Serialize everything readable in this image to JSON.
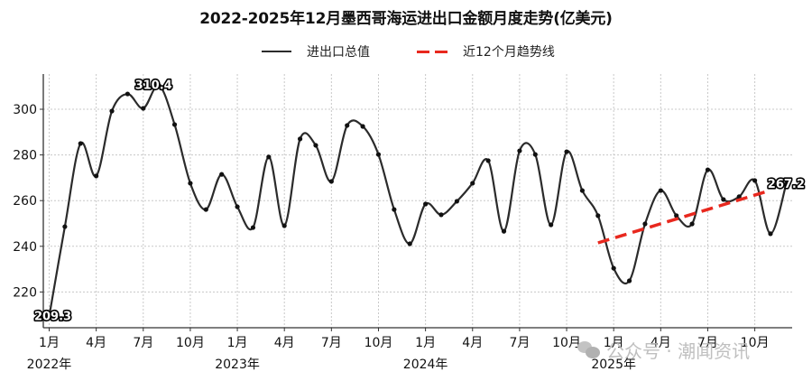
{
  "title": "2022-2025年12月墨西哥海运进出口金额月度走势(亿美元)",
  "legend": [
    {
      "label": "进出口总值",
      "style": "solid",
      "color": "#2b2b2b"
    },
    {
      "label": "近12个月趋势线",
      "style": "dashed",
      "color": "#e8281e"
    }
  ],
  "watermark": "公众号 · 潮闻资讯",
  "chart_data": {
    "type": "line",
    "title": "2022-2025年12月墨西哥海运进出口金额月度走势(亿美元)",
    "xlabel": "",
    "ylabel": "",
    "ylim": [
      204,
      316
    ],
    "yticks": [
      220,
      240,
      260,
      280,
      300
    ],
    "grid": true,
    "legend_position": "top-center",
    "x_tick_labels": [
      "1月",
      "4月",
      "7月",
      "10月",
      "1月",
      "4月",
      "7月",
      "10月",
      "1月",
      "4月",
      "7月",
      "10月",
      "1月",
      "4月",
      "7月",
      "10月"
    ],
    "x_tick_indices": [
      0,
      3,
      6,
      9,
      12,
      15,
      18,
      21,
      24,
      27,
      30,
      33,
      36,
      39,
      42,
      45
    ],
    "year_labels": [
      {
        "label": "2022年",
        "index": 0
      },
      {
        "label": "2023年",
        "index": 12
      },
      {
        "label": "2024年",
        "index": 24
      },
      {
        "label": "2025年",
        "index": 36
      }
    ],
    "x": [
      "2022-01",
      "2022-02",
      "2022-03",
      "2022-04",
      "2022-05",
      "2022-06",
      "2022-07",
      "2022-08",
      "2022-09",
      "2022-10",
      "2022-11",
      "2022-12",
      "2023-01",
      "2023-02",
      "2023-03",
      "2023-04",
      "2023-05",
      "2023-06",
      "2023-07",
      "2023-08",
      "2023-09",
      "2023-10",
      "2023-11",
      "2023-12",
      "2024-01",
      "2024-02",
      "2024-03",
      "2024-04",
      "2024-05",
      "2024-06",
      "2024-07",
      "2024-08",
      "2024-09",
      "2024-10",
      "2024-11",
      "2024-12",
      "2025-01",
      "2025-02",
      "2025-03",
      "2025-04",
      "2025-05",
      "2025-06",
      "2025-07",
      "2025-08",
      "2025-09",
      "2025-10",
      "2025-11",
      "2025-12"
    ],
    "series": [
      {
        "name": "进出口总值",
        "color": "#2b2b2b",
        "values": [
          209.3,
          248.6,
          285.0,
          270.8,
          299.2,
          306.7,
          300.4,
          310.4,
          293.3,
          267.6,
          256.1,
          271.5,
          257.3,
          248.2,
          279.1,
          249.0,
          287.0,
          284.2,
          268.4,
          292.9,
          292.5,
          280.2,
          256.1,
          241.1,
          258.5,
          253.8,
          259.7,
          267.6,
          277.5,
          246.6,
          281.8,
          280.2,
          249.4,
          281.4,
          264.4,
          253.4,
          230.4,
          224.9,
          249.8,
          264.4,
          253.4,
          249.8,
          273.5,
          260.5,
          261.7,
          268.8,
          245.5,
          267.2
        ]
      },
      {
        "name": "近12个月趋势线",
        "color": "#e8281e",
        "style": "dashed",
        "start_index": 35,
        "end_index": 46,
        "start_value": 241.5,
        "end_value": 264.5
      }
    ],
    "annotations": [
      {
        "index": 0,
        "text": "209.3"
      },
      {
        "index": 7,
        "text": "310.4"
      },
      {
        "index": 47,
        "text": "267.2"
      }
    ]
  }
}
